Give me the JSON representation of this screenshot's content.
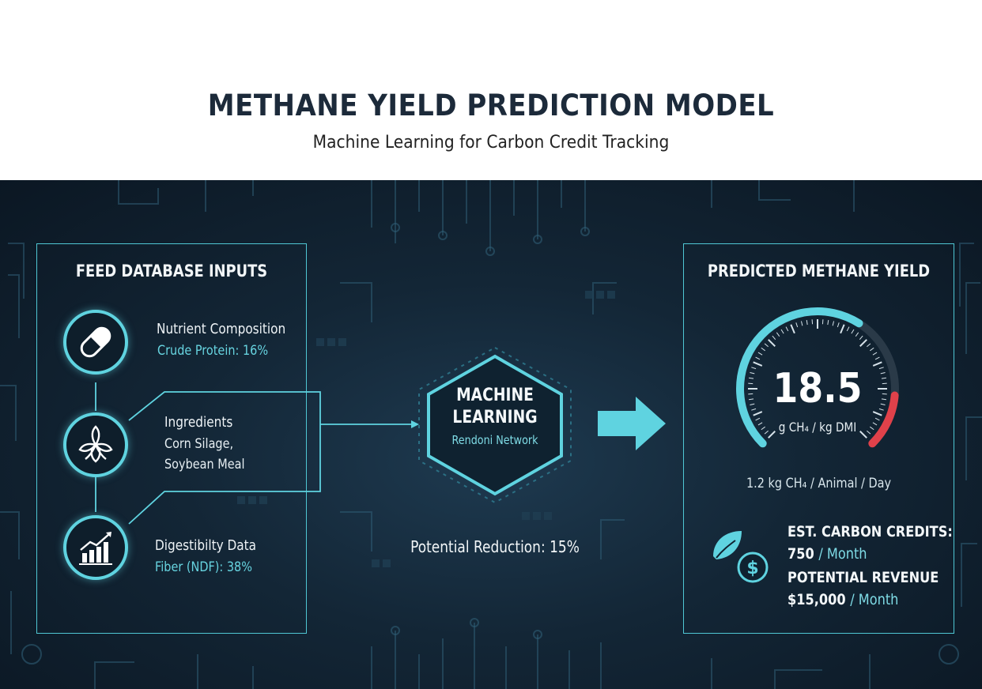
{
  "header": {
    "title": "METHANE YIELD PREDICTION MODEL",
    "subtitle": "Machine Learning for Carbon Credit Tracking"
  },
  "inputs": {
    "title": "FEED DATABASE INPUTS",
    "items": [
      {
        "title": "Nutrient Composition",
        "detail": "Crude Protein: 16%",
        "icon": "capsule-icon"
      },
      {
        "title": "Ingredients",
        "detail_line1": "Corn Silage,",
        "detail_line2": "Soybean Meal",
        "icon": "leaf-cluster-icon"
      },
      {
        "title": "Digestibilty Data",
        "detail": "Fiber (NDF): 38%",
        "icon": "bar-chart-trend-icon"
      }
    ]
  },
  "model": {
    "title_line1": "MACHINE",
    "title_line2": "LEARNING",
    "subtitle": "Rendoni Network",
    "reduction": "Potential Reduction: 15%"
  },
  "output": {
    "title": "PREDICTED METHANE YIELD",
    "gauge": {
      "value": "18.5",
      "unit": "g CH₄ / kg DMI",
      "fill_fraction": 0.62
    },
    "per_day": "1.2 kg CH₄ / Animal / Day",
    "credits_label": "EST. CARBON CREDITS:",
    "credits_value": "750",
    "credits_unit": "/ Month",
    "revenue_label": "POTENTIAL REVENUE",
    "revenue_value": "$15,000",
    "revenue_unit": "/ Month",
    "icon": "leaf-dollar-icon"
  },
  "colors": {
    "accent": "#5fd3e0",
    "background": "#132636",
    "alert": "#e0414a"
  }
}
